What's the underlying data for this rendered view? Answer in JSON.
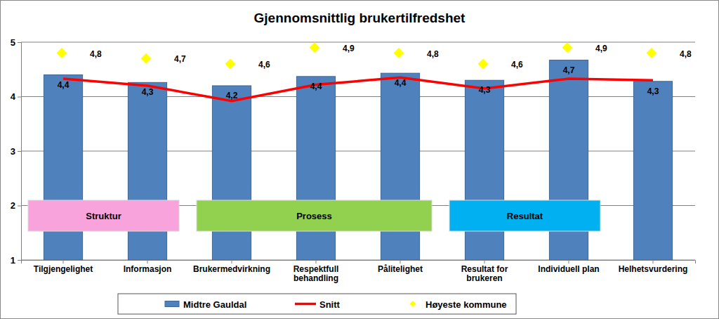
{
  "chart_data": {
    "type": "bar",
    "title": "Gjennomsnittlig brukertilfredshet",
    "categories": [
      "Tilgjengelighet",
      "Informasjon",
      "Brukermedvirkning",
      "Respektfull behandling",
      "Pålitelighet",
      "Resultat for brukeren",
      "Individuell plan",
      "Helhetsvurdering"
    ],
    "ylim": [
      1,
      5
    ],
    "yticks": [
      1,
      2,
      3,
      4,
      5
    ],
    "grid": true,
    "legend": "bottom",
    "series": [
      {
        "name": "Midtre Gauldal",
        "type": "bar",
        "color": "#4f81bd",
        "data_labels": true,
        "values": [
          4.4,
          4.26,
          4.2,
          4.37,
          4.43,
          4.3,
          4.67,
          4.28
        ],
        "value_labels": [
          "4,4",
          "4,3",
          "4,2",
          "4,4",
          "4,4",
          "4,3",
          "4,7",
          "4,3"
        ]
      },
      {
        "name": "Snitt",
        "type": "line",
        "color": "#ff0000",
        "line_style": "solid",
        "values": [
          4.33,
          4.2,
          3.92,
          4.22,
          4.35,
          4.15,
          4.33,
          4.3
        ]
      },
      {
        "name": "Høyeste kommune",
        "type": "scatter",
        "marker": "diamond",
        "color": "#ffff00",
        "data_labels": true,
        "values": [
          4.8,
          4.7,
          4.6,
          4.9,
          4.8,
          4.6,
          4.9,
          4.8
        ],
        "value_labels": [
          "4,8",
          "4,7",
          "4,6",
          "4,9",
          "4,8",
          "4,6",
          "4,9",
          "4,8"
        ]
      }
    ],
    "annotations": [
      {
        "text": "Struktur",
        "color": "#f9a3dc",
        "categories": [
          "Tilgjengelighet",
          "Informasjon"
        ]
      },
      {
        "text": "Prosess",
        "color": "#92d050",
        "categories": [
          "Brukermedvirkning",
          "Pålitelighet"
        ]
      },
      {
        "text": "Resultat",
        "color": "#00b0f0",
        "categories": [
          "Resultat for brukeren",
          "Individuell plan"
        ]
      }
    ]
  }
}
